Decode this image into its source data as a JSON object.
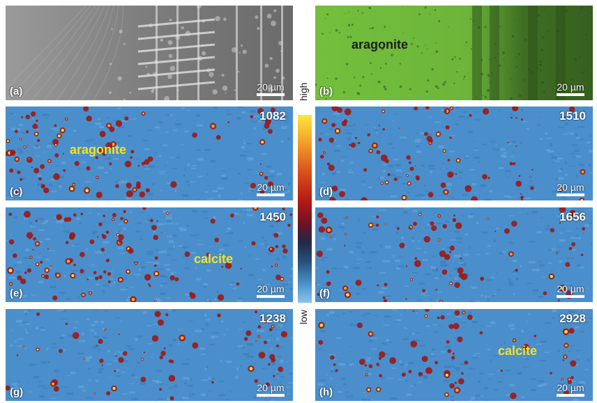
{
  "panels": {
    "a": {
      "label": "(a)",
      "scale": "20 µm"
    },
    "b": {
      "label": "(b)",
      "scale": "20 µm",
      "material": "aragonite"
    },
    "c": {
      "label": "(c)",
      "scale": "20 µm",
      "wavenumber": "1082",
      "material": "aragonite"
    },
    "d": {
      "label": "(d)",
      "scale": "20 µm",
      "wavenumber": "1510"
    },
    "e": {
      "label": "(e)",
      "scale": "20 µm",
      "wavenumber": "1450",
      "material": "calcite"
    },
    "f": {
      "label": "(f)",
      "scale": "20 µm",
      "wavenumber": "1656"
    },
    "g": {
      "label": "(g)",
      "scale": "20 µm",
      "wavenumber": "1238"
    },
    "h": {
      "label": "(h)",
      "scale": "20 µm",
      "wavenumber": "2928",
      "material": "calcite"
    }
  },
  "colorbar": {
    "high": "high",
    "low": "low"
  },
  "colors": {
    "map_background": "#4a8fcc",
    "hot": "#b21a14",
    "hottest": "#ffe63a",
    "aragonite_green": "#6db83a",
    "material_label": "#f5e21e"
  }
}
